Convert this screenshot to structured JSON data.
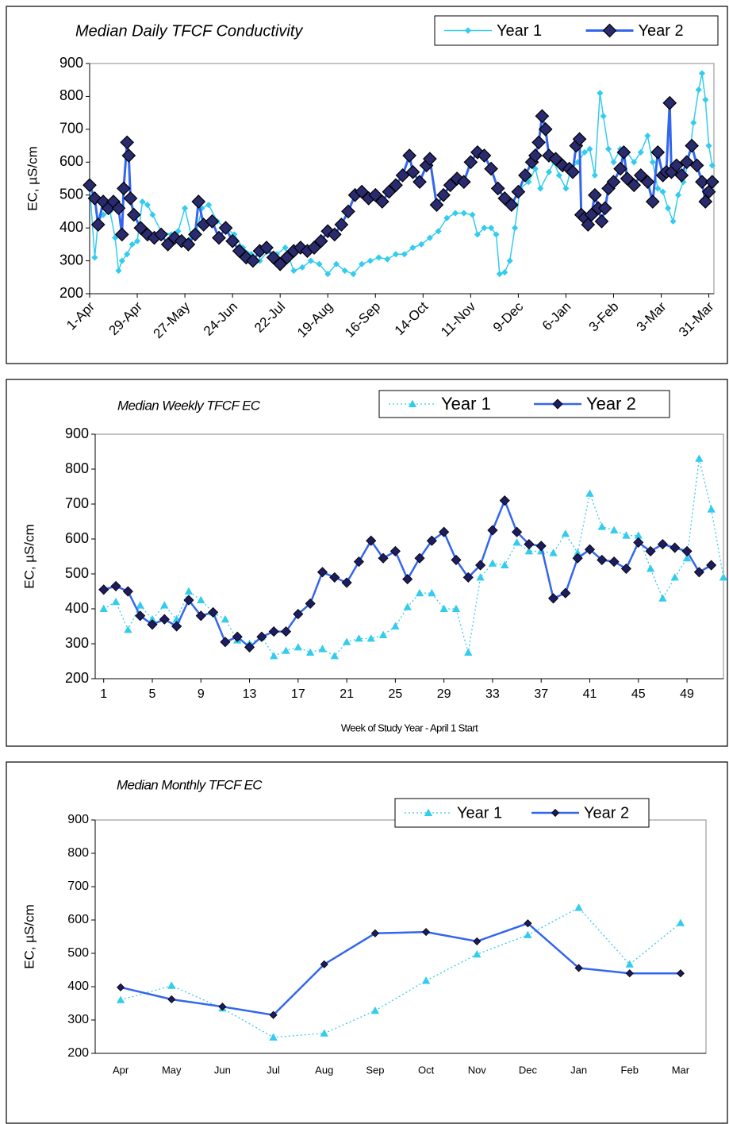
{
  "chart_data": [
    {
      "type": "line",
      "title": "Median Daily TFCF Conductivity",
      "y_label": "EC, µS/cm",
      "xlim": [
        0,
        367
      ],
      "ylim": [
        200,
        900
      ],
      "xticks": [
        {
          "value": 0,
          "label": "1-Apr"
        },
        {
          "value": 28,
          "label": "29-Apr"
        },
        {
          "value": 56,
          "label": "27-May"
        },
        {
          "value": 84,
          "label": "24-Jun"
        },
        {
          "value": 112,
          "label": "22-Jul"
        },
        {
          "value": 140,
          "label": "19-Aug"
        },
        {
          "value": 168,
          "label": "16-Sep"
        },
        {
          "value": 196,
          "label": "14-Oct"
        },
        {
          "value": 224,
          "label": "11-Nov"
        },
        {
          "value": 252,
          "label": "9-Dec"
        },
        {
          "value": 280,
          "label": "6-Jan"
        },
        {
          "value": 308,
          "label": "3-Feb"
        },
        {
          "value": 336,
          "label": "3-Mar"
        },
        {
          "value": 364,
          "label": "31-Mar"
        }
      ],
      "yticks": [
        200,
        300,
        400,
        500,
        600,
        700,
        800,
        900
      ],
      "series": [
        {
          "name": "Year 1",
          "color": "#33ccee",
          "marker_color": "#33ccee",
          "marker_edge": "#33ccee",
          "marker": "diamond",
          "line_style": "solid",
          "x": [
            0,
            3,
            5,
            8,
            12,
            15,
            17,
            19,
            22,
            25,
            28,
            31,
            34,
            37,
            42,
            48,
            52,
            56,
            60,
            63,
            66,
            70,
            75,
            80,
            85,
            90,
            95,
            100,
            105,
            110,
            115,
            120,
            125,
            130,
            135,
            140,
            145,
            150,
            155,
            160,
            165,
            170,
            175,
            180,
            185,
            190,
            195,
            200,
            205,
            210,
            215,
            220,
            225,
            228,
            232,
            236,
            239,
            241,
            244,
            247,
            250,
            253,
            258,
            262,
            265,
            270,
            273,
            276,
            280,
            283,
            287,
            291,
            294,
            297,
            300,
            302,
            305,
            308,
            312,
            316,
            320,
            324,
            328,
            331,
            334,
            337,
            340,
            343,
            346,
            349,
            352,
            355,
            358,
            360,
            362,
            364,
            366
          ],
          "values": [
            530,
            310,
            420,
            440,
            450,
            370,
            270,
            300,
            320,
            350,
            360,
            480,
            470,
            440,
            390,
            380,
            390,
            460,
            370,
            390,
            460,
            470,
            420,
            400,
            380,
            340,
            320,
            300,
            330,
            320,
            340,
            270,
            280,
            300,
            290,
            260,
            290,
            270,
            260,
            290,
            300,
            310,
            305,
            320,
            320,
            340,
            350,
            370,
            390,
            430,
            445,
            445,
            440,
            380,
            400,
            400,
            380,
            260,
            265,
            300,
            400,
            520,
            540,
            580,
            520,
            570,
            600,
            560,
            520,
            580,
            600,
            630,
            640,
            560,
            810,
            740,
            640,
            600,
            640,
            630,
            600,
            630,
            680,
            600,
            520,
            510,
            460,
            420,
            500,
            540,
            600,
            720,
            820,
            870,
            790,
            650,
            590
          ]
        },
        {
          "name": "Year 2",
          "color": "#3366ee",
          "marker_color": "#2a2a6e",
          "marker_edge": "#000000",
          "marker": "diamond",
          "line_style": "solid",
          "x": [
            0,
            3,
            5,
            8,
            11,
            14,
            17,
            19,
            20,
            22,
            23,
            24,
            26,
            30,
            34,
            38,
            42,
            46,
            50,
            54,
            58,
            62,
            64,
            67,
            72,
            76,
            80,
            84,
            88,
            92,
            96,
            100,
            104,
            108,
            112,
            116,
            120,
            124,
            128,
            132,
            136,
            140,
            144,
            148,
            152,
            156,
            160,
            164,
            168,
            172,
            176,
            180,
            184,
            188,
            190,
            194,
            198,
            200,
            204,
            208,
            212,
            216,
            220,
            224,
            228,
            232,
            236,
            240,
            244,
            248,
            252,
            256,
            260,
            262,
            264,
            266,
            268,
            270,
            274,
            278,
            282,
            284,
            286,
            288,
            289,
            291,
            293,
            295,
            297,
            299,
            301,
            303,
            305,
            308,
            312,
            314,
            316,
            320,
            324,
            328,
            331,
            334,
            337,
            339,
            341,
            342,
            345,
            348,
            351,
            354,
            357,
            360,
            362,
            364,
            366
          ],
          "values": [
            530,
            490,
            410,
            480,
            460,
            480,
            460,
            380,
            520,
            660,
            620,
            490,
            440,
            400,
            380,
            370,
            380,
            350,
            370,
            360,
            350,
            380,
            480,
            410,
            420,
            370,
            400,
            360,
            330,
            310,
            300,
            330,
            340,
            310,
            290,
            310,
            330,
            340,
            330,
            340,
            360,
            390,
            380,
            410,
            450,
            500,
            510,
            490,
            500,
            480,
            510,
            530,
            560,
            620,
            570,
            540,
            590,
            610,
            470,
            500,
            530,
            550,
            540,
            600,
            630,
            620,
            580,
            520,
            490,
            470,
            510,
            560,
            600,
            620,
            660,
            740,
            700,
            620,
            610,
            590,
            580,
            570,
            650,
            670,
            440,
            430,
            410,
            440,
            500,
            460,
            420,
            460,
            520,
            540,
            580,
            630,
            550,
            530,
            560,
            540,
            480,
            630,
            560,
            570,
            780,
            570,
            590,
            560,
            600,
            650,
            590,
            540,
            480,
            510,
            540
          ]
        }
      ]
    },
    {
      "type": "line",
      "title": "Median Weekly TFCF EC",
      "y_label": "EC, µS/cm",
      "x_label": "Week of Study Year - April 1 Start",
      "xlim": [
        0.3,
        52
      ],
      "ylim": [
        200,
        900
      ],
      "xticks": [
        1,
        5,
        9,
        13,
        17,
        21,
        25,
        29,
        33,
        37,
        41,
        45,
        49
      ],
      "yticks": [
        200,
        300,
        400,
        500,
        600,
        700,
        800,
        900
      ],
      "x": [
        1,
        2,
        3,
        4,
        5,
        6,
        7,
        8,
        9,
        10,
        11,
        12,
        13,
        14,
        15,
        16,
        17,
        18,
        19,
        20,
        21,
        22,
        23,
        24,
        25,
        26,
        27,
        28,
        29,
        30,
        31,
        32,
        33,
        34,
        35,
        36,
        37,
        38,
        39,
        40,
        41,
        42,
        43,
        44,
        45,
        46,
        47,
        48,
        49,
        50,
        51,
        52
      ],
      "series": [
        {
          "name": "Year 1",
          "color": "#33ccee",
          "marker_color": "#33ccee",
          "marker_edge": "#33ccee",
          "marker": "triangle",
          "line_style": "dotted",
          "values": [
            400,
            420,
            340,
            410,
            370,
            410,
            370,
            450,
            425,
            390,
            370,
            310,
            300,
            320,
            265,
            280,
            290,
            275,
            285,
            265,
            305,
            315,
            315,
            325,
            350,
            405,
            445,
            445,
            400,
            400,
            275,
            490,
            530,
            525,
            590,
            565,
            565,
            560,
            615,
            560,
            730,
            635,
            625,
            610,
            610,
            515,
            430,
            490,
            545,
            830,
            685,
            490
          ]
        },
        {
          "name": "Year 2",
          "color": "#3366ee",
          "marker_color": "#1c1c5e",
          "marker_edge": "#000000",
          "marker": "diamond",
          "line_style": "solid",
          "values": [
            455,
            465,
            450,
            380,
            355,
            370,
            350,
            425,
            380,
            390,
            305,
            320,
            290,
            320,
            335,
            335,
            385,
            415,
            505,
            490,
            475,
            535,
            595,
            545,
            565,
            485,
            545,
            595,
            620,
            540,
            490,
            525,
            625,
            710,
            620,
            585,
            580,
            430,
            445,
            545,
            570,
            540,
            535,
            515,
            590,
            565,
            585,
            575,
            565,
            505,
            525,
            null
          ]
        }
      ]
    },
    {
      "type": "line",
      "title": "Median Monthly TFCF EC",
      "y_label": "EC, µS/cm",
      "ylim": [
        200,
        900
      ],
      "yticks": [
        200,
        300,
        400,
        500,
        600,
        700,
        800,
        900
      ],
      "categories": [
        "Apr",
        "May",
        "Jun",
        "Jul",
        "Aug",
        "Sep",
        "Oct",
        "Nov",
        "Dec",
        "Jan",
        "Feb",
        "Mar"
      ],
      "series": [
        {
          "name": "Year 1",
          "color": "#33ccee",
          "marker_color": "#33ccee",
          "marker_edge": "#33ccee",
          "marker": "triangle",
          "line_style": "dotted",
          "values": [
            360,
            403,
            335,
            248,
            260,
            328,
            418,
            497,
            555,
            637,
            467,
            591
          ]
        },
        {
          "name": "Year 2",
          "color": "#3366ee",
          "marker_color": "#1c1c5e",
          "marker_edge": "#000000",
          "marker": "diamond",
          "line_style": "solid",
          "values": [
            398,
            362,
            340,
            315,
            467,
            560,
            564,
            536,
            590,
            456,
            440,
            440
          ]
        }
      ]
    }
  ]
}
